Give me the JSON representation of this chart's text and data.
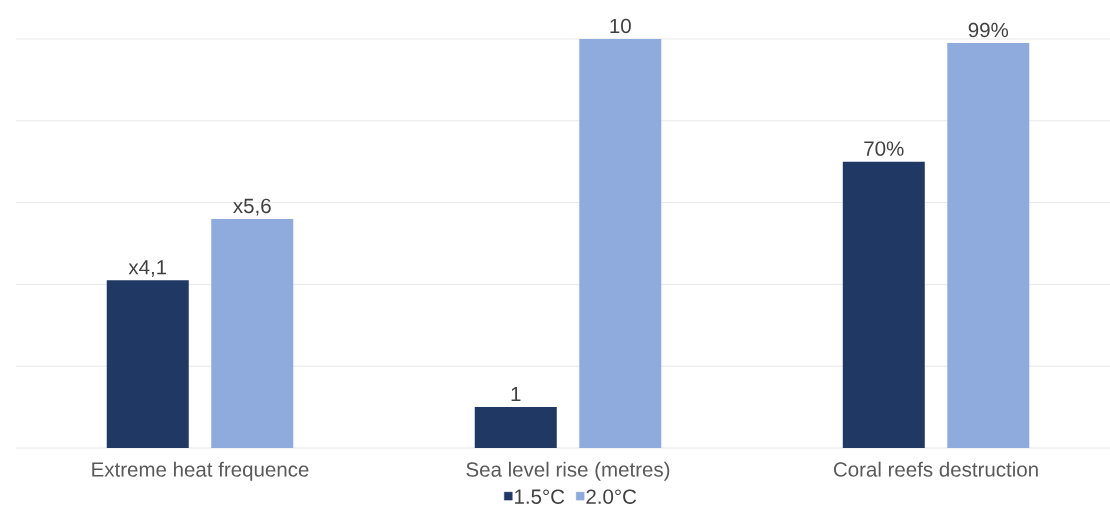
{
  "chart_data": {
    "type": "bar",
    "categories": [
      "Extreme heat frequence",
      "Sea level rise (metres)",
      "Coral reefs destruction"
    ],
    "series": [
      {
        "name": "1.5°C",
        "color": "#203864",
        "values": [
          4.1,
          1,
          null
        ],
        "value_labels": [
          "x4,1",
          "1",
          null
        ]
      },
      {
        "name": "2.0°C",
        "color": "#8faadc",
        "values": [
          5.6,
          10,
          null
        ],
        "value_labels": [
          "x5,6",
          "10",
          null
        ]
      },
      {
        "color": "#203864",
        "axis": "y2",
        "values": [
          null,
          null,
          70
        ],
        "value_labels": [
          null,
          null,
          "70%"
        ]
      },
      {
        "color": "#8faadc",
        "axis": "y2",
        "values": [
          null,
          null,
          99
        ],
        "value_labels": [
          null,
          null,
          "99%"
        ]
      }
    ],
    "ylim": [
      0,
      10
    ],
    "yticks": [
      {
        "value": 0,
        "label": null
      },
      {
        "value": 2,
        "label": null
      },
      {
        "value": 4,
        "label": null
      },
      {
        "value": 6,
        "label": null
      },
      {
        "value": 8,
        "label": null
      },
      {
        "value": 10,
        "label": null
      }
    ],
    "y2lim": [
      0,
      100
    ],
    "grid": "y",
    "tick_labels": "x",
    "legend": "bottom"
  }
}
